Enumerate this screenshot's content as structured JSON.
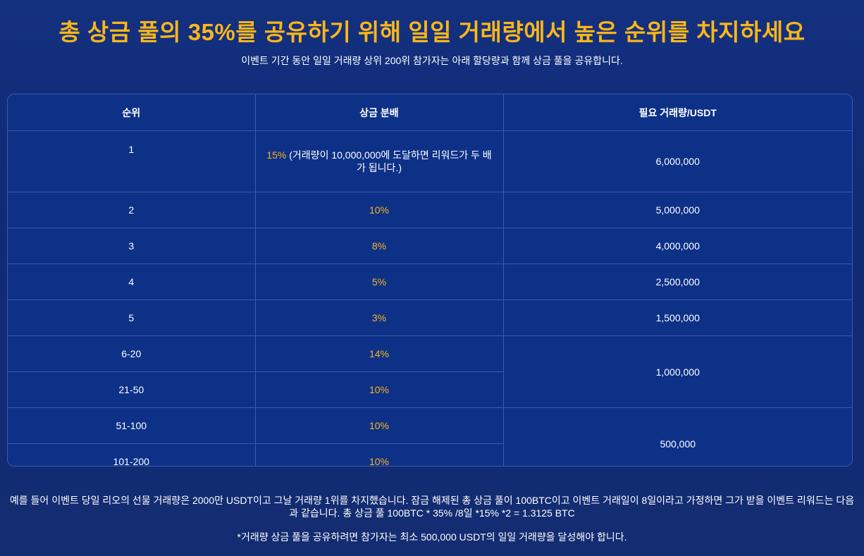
{
  "header": {
    "title": "총 상금 풀의 35%를 공유하기 위해 일일 거래량에서 높은 순위를 차지하세요",
    "subtitle": "이벤트 기간 동안 일일 거래량 상위 200위 참가자는 아래 할당량과 함께 상금 풀을 공유합니다."
  },
  "table": {
    "headers": [
      "순위",
      "상금 분배",
      "필요 거래량/USDT"
    ],
    "rows": [
      {
        "rank": "1",
        "share": "15%",
        "share_note": " (거래량이 10,000,000에 도달하면 리워드가 두 배가 됩니다.)",
        "volume": "6,000,000"
      },
      {
        "rank": "2",
        "share": "10%",
        "volume": "5,000,000"
      },
      {
        "rank": "3",
        "share": "8%",
        "volume": "4,000,000"
      },
      {
        "rank": "4",
        "share": "5%",
        "volume": "2,500,000"
      },
      {
        "rank": "5",
        "share": "3%",
        "volume": "1,500,000"
      },
      {
        "rank": "6-20",
        "share": "14%",
        "volume": "1,000,000"
      },
      {
        "rank": "21-50",
        "share": "10%"
      },
      {
        "rank": "51-100",
        "share": "10%",
        "volume": "500,000"
      },
      {
        "rank": "101-200",
        "share": "10%"
      }
    ]
  },
  "footer": {
    "example": "예를 들어 이벤트 당일 리오의 선물 거래량은 2000만 USDT이고 그날 거래량 1위를 차지했습니다. 잠금 해제된 총 상금 풀이 100BTC이고 이벤트 거래일이 8일이라고 가정하면 그가 받을 이벤트 리워드는 다음과 같습니다. 총 상금 풀 100BTC * 35% /8일 *15% *2 = 1.3125 BTC",
    "requirement": "*거래량 상금 풀을 공유하려면 참가자는 최소 500,000 USDT의 일일 거래량을 달성해야 합니다."
  },
  "colors": {
    "accent": "#f9b61a",
    "background": "#13307f",
    "table_bg": "#0e3188",
    "border": "#3a5ab0"
  }
}
